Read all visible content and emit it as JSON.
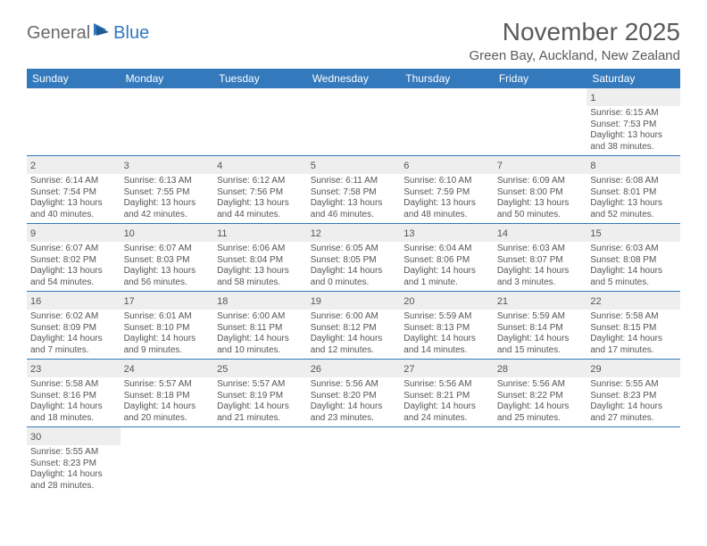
{
  "logo": {
    "text1": "General",
    "text2": "Blue"
  },
  "title": "November 2025",
  "location": "Green Bay, Auckland, New Zealand",
  "colors": {
    "header_bg": "#3379bc",
    "header_text": "#ffffff",
    "day_header_bg": "#eeeeee",
    "cell_border": "#3379bc",
    "body_text": "#555555",
    "page_bg": "#ffffff",
    "logo_general": "#6a6a6a",
    "logo_blue": "#2f78bd"
  },
  "fonts": {
    "title_size": 28,
    "location_size": 15,
    "header_size": 12,
    "daynum_size": 11,
    "body_size": 10
  },
  "weekdays": [
    "Sunday",
    "Monday",
    "Tuesday",
    "Wednesday",
    "Thursday",
    "Friday",
    "Saturday"
  ],
  "weeks": [
    [
      null,
      null,
      null,
      null,
      null,
      null,
      {
        "n": "1",
        "sunrise": "Sunrise: 6:15 AM",
        "sunset": "Sunset: 7:53 PM",
        "daylight": "Daylight: 13 hours and 38 minutes."
      }
    ],
    [
      {
        "n": "2",
        "sunrise": "Sunrise: 6:14 AM",
        "sunset": "Sunset: 7:54 PM",
        "daylight": "Daylight: 13 hours and 40 minutes."
      },
      {
        "n": "3",
        "sunrise": "Sunrise: 6:13 AM",
        "sunset": "Sunset: 7:55 PM",
        "daylight": "Daylight: 13 hours and 42 minutes."
      },
      {
        "n": "4",
        "sunrise": "Sunrise: 6:12 AM",
        "sunset": "Sunset: 7:56 PM",
        "daylight": "Daylight: 13 hours and 44 minutes."
      },
      {
        "n": "5",
        "sunrise": "Sunrise: 6:11 AM",
        "sunset": "Sunset: 7:58 PM",
        "daylight": "Daylight: 13 hours and 46 minutes."
      },
      {
        "n": "6",
        "sunrise": "Sunrise: 6:10 AM",
        "sunset": "Sunset: 7:59 PM",
        "daylight": "Daylight: 13 hours and 48 minutes."
      },
      {
        "n": "7",
        "sunrise": "Sunrise: 6:09 AM",
        "sunset": "Sunset: 8:00 PM",
        "daylight": "Daylight: 13 hours and 50 minutes."
      },
      {
        "n": "8",
        "sunrise": "Sunrise: 6:08 AM",
        "sunset": "Sunset: 8:01 PM",
        "daylight": "Daylight: 13 hours and 52 minutes."
      }
    ],
    [
      {
        "n": "9",
        "sunrise": "Sunrise: 6:07 AM",
        "sunset": "Sunset: 8:02 PM",
        "daylight": "Daylight: 13 hours and 54 minutes."
      },
      {
        "n": "10",
        "sunrise": "Sunrise: 6:07 AM",
        "sunset": "Sunset: 8:03 PM",
        "daylight": "Daylight: 13 hours and 56 minutes."
      },
      {
        "n": "11",
        "sunrise": "Sunrise: 6:06 AM",
        "sunset": "Sunset: 8:04 PM",
        "daylight": "Daylight: 13 hours and 58 minutes."
      },
      {
        "n": "12",
        "sunrise": "Sunrise: 6:05 AM",
        "sunset": "Sunset: 8:05 PM",
        "daylight": "Daylight: 14 hours and 0 minutes."
      },
      {
        "n": "13",
        "sunrise": "Sunrise: 6:04 AM",
        "sunset": "Sunset: 8:06 PM",
        "daylight": "Daylight: 14 hours and 1 minute."
      },
      {
        "n": "14",
        "sunrise": "Sunrise: 6:03 AM",
        "sunset": "Sunset: 8:07 PM",
        "daylight": "Daylight: 14 hours and 3 minutes."
      },
      {
        "n": "15",
        "sunrise": "Sunrise: 6:03 AM",
        "sunset": "Sunset: 8:08 PM",
        "daylight": "Daylight: 14 hours and 5 minutes."
      }
    ],
    [
      {
        "n": "16",
        "sunrise": "Sunrise: 6:02 AM",
        "sunset": "Sunset: 8:09 PM",
        "daylight": "Daylight: 14 hours and 7 minutes."
      },
      {
        "n": "17",
        "sunrise": "Sunrise: 6:01 AM",
        "sunset": "Sunset: 8:10 PM",
        "daylight": "Daylight: 14 hours and 9 minutes."
      },
      {
        "n": "18",
        "sunrise": "Sunrise: 6:00 AM",
        "sunset": "Sunset: 8:11 PM",
        "daylight": "Daylight: 14 hours and 10 minutes."
      },
      {
        "n": "19",
        "sunrise": "Sunrise: 6:00 AM",
        "sunset": "Sunset: 8:12 PM",
        "daylight": "Daylight: 14 hours and 12 minutes."
      },
      {
        "n": "20",
        "sunrise": "Sunrise: 5:59 AM",
        "sunset": "Sunset: 8:13 PM",
        "daylight": "Daylight: 14 hours and 14 minutes."
      },
      {
        "n": "21",
        "sunrise": "Sunrise: 5:59 AM",
        "sunset": "Sunset: 8:14 PM",
        "daylight": "Daylight: 14 hours and 15 minutes."
      },
      {
        "n": "22",
        "sunrise": "Sunrise: 5:58 AM",
        "sunset": "Sunset: 8:15 PM",
        "daylight": "Daylight: 14 hours and 17 minutes."
      }
    ],
    [
      {
        "n": "23",
        "sunrise": "Sunrise: 5:58 AM",
        "sunset": "Sunset: 8:16 PM",
        "daylight": "Daylight: 14 hours and 18 minutes."
      },
      {
        "n": "24",
        "sunrise": "Sunrise: 5:57 AM",
        "sunset": "Sunset: 8:18 PM",
        "daylight": "Daylight: 14 hours and 20 minutes."
      },
      {
        "n": "25",
        "sunrise": "Sunrise: 5:57 AM",
        "sunset": "Sunset: 8:19 PM",
        "daylight": "Daylight: 14 hours and 21 minutes."
      },
      {
        "n": "26",
        "sunrise": "Sunrise: 5:56 AM",
        "sunset": "Sunset: 8:20 PM",
        "daylight": "Daylight: 14 hours and 23 minutes."
      },
      {
        "n": "27",
        "sunrise": "Sunrise: 5:56 AM",
        "sunset": "Sunset: 8:21 PM",
        "daylight": "Daylight: 14 hours and 24 minutes."
      },
      {
        "n": "28",
        "sunrise": "Sunrise: 5:56 AM",
        "sunset": "Sunset: 8:22 PM",
        "daylight": "Daylight: 14 hours and 25 minutes."
      },
      {
        "n": "29",
        "sunrise": "Sunrise: 5:55 AM",
        "sunset": "Sunset: 8:23 PM",
        "daylight": "Daylight: 14 hours and 27 minutes."
      }
    ],
    [
      {
        "n": "30",
        "sunrise": "Sunrise: 5:55 AM",
        "sunset": "Sunset: 8:23 PM",
        "daylight": "Daylight: 14 hours and 28 minutes."
      },
      null,
      null,
      null,
      null,
      null,
      null
    ]
  ]
}
